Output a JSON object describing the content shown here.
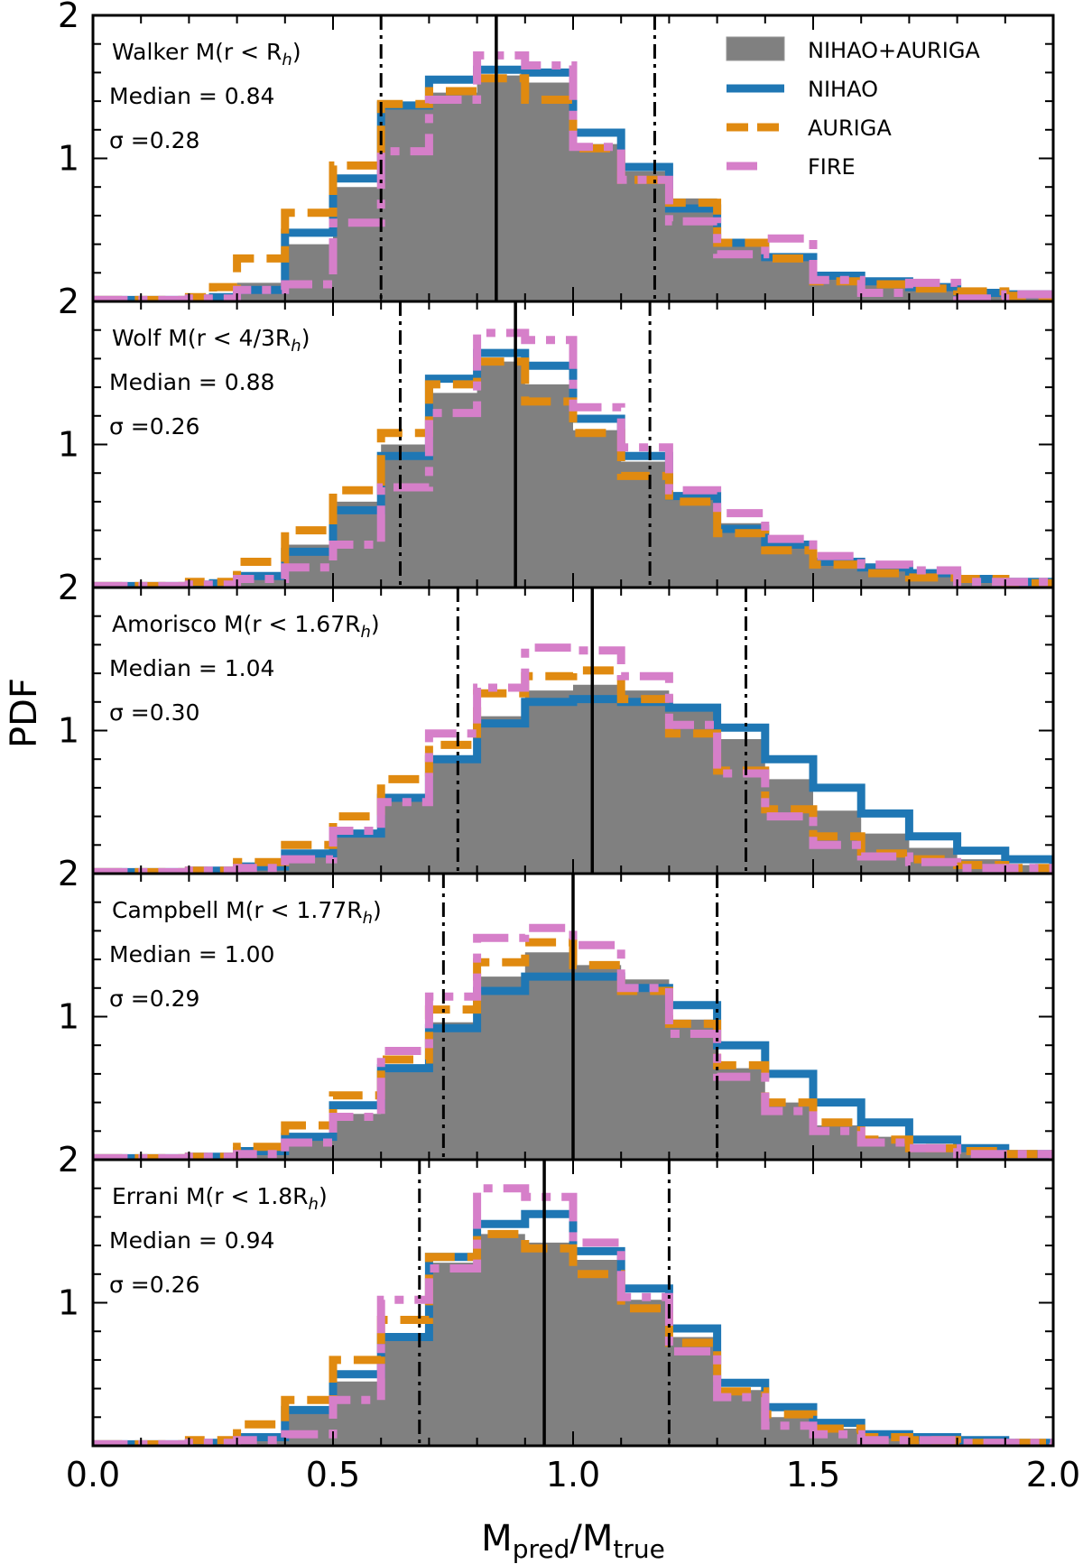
{
  "chart_data": {
    "type": "histogram",
    "xlabel_main": "M",
    "xlabel_sub1": "pred",
    "xlabel_mid": "/M",
    "xlabel_sub2": "true",
    "ylabel": "PDF",
    "xlim": [
      0.0,
      2.0
    ],
    "ylim": [
      0,
      2
    ],
    "x_ticks": [
      "0.0",
      "0.5",
      "1.0",
      "1.5",
      "2.0"
    ],
    "y_tick_labels": [
      "2",
      "1"
    ],
    "bin_edges": [
      0.0,
      0.05,
      0.1,
      0.15,
      0.2,
      0.25,
      0.3,
      0.35,
      0.4,
      0.45,
      0.5,
      0.55,
      0.6,
      0.65,
      0.7,
      0.75,
      0.8,
      0.85,
      0.9,
      0.95,
      1.0,
      1.05,
      1.1,
      1.15,
      1.2,
      1.25,
      1.3,
      1.35,
      1.4,
      1.45,
      1.5,
      1.55,
      1.6,
      1.65,
      1.7,
      1.75,
      1.8,
      1.85,
      1.9,
      1.95,
      2.0
    ],
    "legend": {
      "position": "upper right",
      "entries": [
        {
          "label": "NIHAO+AURIGA",
          "style": "filled-grey"
        },
        {
          "label": "NIHAO",
          "style": "solid-blue"
        },
        {
          "label": "AURIGA",
          "style": "dashed-orange"
        },
        {
          "label": "FIRE",
          "style": "dashdot-pink"
        }
      ]
    },
    "colors": {
      "combined_fill": "#808080",
      "nihao": "#1f77b4",
      "auriga": "#e08a10",
      "fire": "#d67fc9"
    },
    "panels": [
      {
        "estimator_name": "Walker",
        "radius_label": "M(r < R",
        "median_text": "Median = 0.84",
        "sigma_text": "σ =0.28",
        "median": 0.84,
        "p16": 0.6,
        "p84": 1.17,
        "combined": [
          0.01,
          0.01,
          0.01,
          0.01,
          0.02,
          0.03,
          0.13,
          0.13,
          0.4,
          0.4,
          0.8,
          0.8,
          1.38,
          1.38,
          1.46,
          1.46,
          1.58,
          1.58,
          1.53,
          1.53,
          1.1,
          1.1,
          0.91,
          0.91,
          0.72,
          0.72,
          0.43,
          0.43,
          0.32,
          0.32,
          0.2,
          0.2,
          0.16,
          0.16,
          0.11,
          0.11,
          0.07,
          0.07,
          0.04,
          0.04
        ],
        "nihao": [
          0.01,
          0.01,
          0.01,
          0.01,
          0.02,
          0.03,
          0.08,
          0.08,
          0.48,
          0.48,
          0.86,
          0.86,
          1.37,
          1.37,
          1.55,
          1.55,
          1.62,
          1.62,
          1.6,
          1.6,
          1.18,
          1.18,
          0.94,
          0.94,
          0.65,
          0.65,
          0.41,
          0.41,
          0.31,
          0.31,
          0.18,
          0.18,
          0.14,
          0.14,
          0.1,
          0.1,
          0.06,
          0.06,
          0.05,
          0.05
        ],
        "auriga": [
          0.01,
          0.01,
          0.01,
          0.01,
          0.03,
          0.1,
          0.3,
          0.3,
          0.62,
          0.62,
          0.95,
          0.95,
          1.38,
          1.38,
          1.47,
          1.47,
          1.56,
          1.56,
          1.41,
          1.41,
          1.07,
          1.07,
          0.85,
          0.85,
          0.69,
          0.69,
          0.41,
          0.41,
          0.3,
          0.3,
          0.14,
          0.14,
          0.12,
          0.12,
          0.09,
          0.09,
          0.07,
          0.07,
          0.04,
          0.04
        ],
        "fire": [
          0.01,
          0.01,
          0.01,
          0.01,
          0.02,
          0.02,
          0.08,
          0.08,
          0.12,
          0.12,
          0.55,
          0.55,
          1.05,
          1.05,
          1.41,
          1.41,
          1.72,
          1.72,
          1.65,
          1.65,
          1.08,
          1.08,
          0.85,
          0.85,
          0.56,
          0.56,
          0.33,
          0.33,
          0.44,
          0.44,
          0.15,
          0.15,
          0.06,
          0.06,
          0.13,
          0.13,
          0.02,
          0.02,
          0.05,
          0.05
        ]
      },
      {
        "estimator_name": "Wolf",
        "radius_label": "M(r < 4/3R",
        "median_text": "Median = 0.88",
        "sigma_text": "σ =0.26",
        "median": 0.88,
        "p16": 0.64,
        "p84": 1.16,
        "combined": [
          0.01,
          0.01,
          0.01,
          0.01,
          0.02,
          0.03,
          0.1,
          0.1,
          0.3,
          0.3,
          0.6,
          0.6,
          1.0,
          1.0,
          1.36,
          1.36,
          1.58,
          1.58,
          1.42,
          1.42,
          1.1,
          1.1,
          0.88,
          0.88,
          0.66,
          0.66,
          0.45,
          0.45,
          0.28,
          0.28,
          0.2,
          0.2,
          0.14,
          0.14,
          0.1,
          0.1,
          0.06,
          0.06,
          0.04,
          0.04
        ],
        "nihao": [
          0.01,
          0.01,
          0.01,
          0.01,
          0.02,
          0.03,
          0.08,
          0.08,
          0.25,
          0.25,
          0.54,
          0.54,
          0.92,
          0.92,
          1.46,
          1.46,
          1.64,
          1.64,
          1.55,
          1.55,
          1.18,
          1.18,
          0.92,
          0.92,
          0.64,
          0.64,
          0.41,
          0.41,
          0.3,
          0.3,
          0.18,
          0.18,
          0.14,
          0.14,
          0.1,
          0.1,
          0.06,
          0.06,
          0.04,
          0.04
        ],
        "auriga": [
          0.01,
          0.01,
          0.01,
          0.01,
          0.04,
          0.04,
          0.18,
          0.18,
          0.4,
          0.4,
          0.68,
          0.68,
          1.08,
          1.08,
          1.42,
          1.42,
          1.58,
          1.58,
          1.3,
          1.3,
          1.08,
          1.08,
          0.78,
          0.78,
          0.6,
          0.6,
          0.38,
          0.38,
          0.26,
          0.26,
          0.16,
          0.16,
          0.1,
          0.1,
          0.07,
          0.07,
          0.06,
          0.06,
          0.03,
          0.03
        ],
        "fire": [
          0.01,
          0.01,
          0.01,
          0.01,
          0.02,
          0.02,
          0.06,
          0.06,
          0.14,
          0.14,
          0.3,
          0.3,
          0.7,
          0.7,
          1.22,
          1.22,
          1.78,
          1.78,
          1.73,
          1.73,
          1.26,
          1.26,
          0.98,
          0.98,
          0.68,
          0.68,
          0.52,
          0.52,
          0.34,
          0.34,
          0.22,
          0.22,
          0.16,
          0.16,
          0.12,
          0.12,
          0.04,
          0.04,
          0.04,
          0.04
        ]
      },
      {
        "estimator_name": "Amorisco",
        "radius_label": "M(r < 1.67R",
        "median_text": "Median = 1.04",
        "sigma_text": "σ =0.30",
        "median": 1.04,
        "p16": 0.76,
        "p84": 1.36,
        "combined": [
          0.01,
          0.01,
          0.01,
          0.01,
          0.02,
          0.02,
          0.05,
          0.05,
          0.15,
          0.15,
          0.3,
          0.3,
          0.55,
          0.55,
          0.78,
          0.78,
          1.1,
          1.1,
          1.28,
          1.28,
          1.32,
          1.32,
          1.28,
          1.28,
          1.16,
          1.16,
          0.94,
          0.94,
          0.66,
          0.66,
          0.44,
          0.44,
          0.28,
          0.28,
          0.18,
          0.18,
          0.1,
          0.1,
          0.06,
          0.06
        ],
        "nihao": [
          0.01,
          0.01,
          0.01,
          0.01,
          0.02,
          0.02,
          0.05,
          0.05,
          0.14,
          0.14,
          0.28,
          0.28,
          0.53,
          0.53,
          0.8,
          0.8,
          1.05,
          1.05,
          1.2,
          1.2,
          1.22,
          1.22,
          1.2,
          1.2,
          1.16,
          1.16,
          1.02,
          1.02,
          0.8,
          0.8,
          0.6,
          0.6,
          0.42,
          0.42,
          0.26,
          0.26,
          0.16,
          0.16,
          0.1,
          0.1
        ],
        "auriga": [
          0.01,
          0.01,
          0.01,
          0.01,
          0.02,
          0.02,
          0.08,
          0.08,
          0.2,
          0.2,
          0.4,
          0.4,
          0.66,
          0.66,
          0.9,
          0.9,
          1.26,
          1.26,
          1.38,
          1.38,
          1.42,
          1.42,
          1.22,
          1.22,
          0.98,
          0.98,
          0.72,
          0.72,
          0.45,
          0.45,
          0.26,
          0.26,
          0.14,
          0.14,
          0.1,
          0.1,
          0.06,
          0.06,
          0.04,
          0.04
        ],
        "fire": [
          0.01,
          0.01,
          0.01,
          0.01,
          0.02,
          0.02,
          0.04,
          0.04,
          0.1,
          0.1,
          0.3,
          0.3,
          0.5,
          0.5,
          0.98,
          0.98,
          1.3,
          1.3,
          1.58,
          1.58,
          1.56,
          1.56,
          1.38,
          1.38,
          1.04,
          1.04,
          0.7,
          0.7,
          0.4,
          0.4,
          0.2,
          0.2,
          0.12,
          0.12,
          0.08,
          0.08,
          0.04,
          0.04,
          0.04,
          0.04
        ]
      },
      {
        "estimator_name": "Campbell",
        "radius_label": "M(r < 1.77R",
        "median_text": "Median = 1.00",
        "sigma_text": "σ =0.29",
        "median": 1.0,
        "p16": 0.73,
        "p84": 1.3,
        "combined": [
          0.01,
          0.01,
          0.01,
          0.01,
          0.02,
          0.02,
          0.05,
          0.05,
          0.14,
          0.14,
          0.32,
          0.32,
          0.62,
          0.62,
          0.96,
          0.96,
          1.28,
          1.28,
          1.45,
          1.45,
          1.36,
          1.36,
          1.26,
          1.26,
          0.98,
          0.98,
          0.64,
          0.64,
          0.4,
          0.4,
          0.24,
          0.24,
          0.16,
          0.16,
          0.1,
          0.1,
          0.06,
          0.06,
          0.04,
          0.04
        ],
        "nihao": [
          0.01,
          0.01,
          0.01,
          0.01,
          0.02,
          0.02,
          0.06,
          0.06,
          0.16,
          0.16,
          0.38,
          0.38,
          0.64,
          0.64,
          0.92,
          0.92,
          1.18,
          1.18,
          1.28,
          1.28,
          1.28,
          1.28,
          1.2,
          1.2,
          1.08,
          1.08,
          0.8,
          0.8,
          0.6,
          0.6,
          0.4,
          0.4,
          0.26,
          0.26,
          0.14,
          0.14,
          0.08,
          0.08,
          0.04,
          0.04
        ],
        "auriga": [
          0.01,
          0.01,
          0.01,
          0.01,
          0.02,
          0.02,
          0.09,
          0.09,
          0.24,
          0.24,
          0.45,
          0.45,
          0.7,
          0.7,
          1.05,
          1.05,
          1.38,
          1.38,
          1.52,
          1.52,
          1.36,
          1.36,
          1.18,
          1.18,
          0.95,
          0.95,
          0.66,
          0.66,
          0.4,
          0.4,
          0.26,
          0.26,
          0.14,
          0.14,
          0.08,
          0.08,
          0.06,
          0.06,
          0.04,
          0.04
        ],
        "fire": [
          0.01,
          0.01,
          0.01,
          0.01,
          0.02,
          0.02,
          0.04,
          0.04,
          0.12,
          0.12,
          0.3,
          0.3,
          0.76,
          0.76,
          1.14,
          1.14,
          1.55,
          1.55,
          1.62,
          1.62,
          1.5,
          1.5,
          1.2,
          1.2,
          0.88,
          0.88,
          0.58,
          0.58,
          0.34,
          0.34,
          0.2,
          0.2,
          0.12,
          0.12,
          0.08,
          0.08,
          0.04,
          0.04,
          0.04,
          0.04
        ]
      },
      {
        "estimator_name": "Errani",
        "radius_label": "M(r < 1.8R",
        "median_text": "Median = 0.94",
        "sigma_text": "σ =0.26",
        "median": 0.94,
        "p16": 0.68,
        "p84": 1.2,
        "combined": [
          0.01,
          0.01,
          0.01,
          0.01,
          0.02,
          0.02,
          0.06,
          0.06,
          0.23,
          0.23,
          0.45,
          0.45,
          0.78,
          0.78,
          1.28,
          1.28,
          1.48,
          1.48,
          1.42,
          1.42,
          1.3,
          1.3,
          1.02,
          1.02,
          0.76,
          0.76,
          0.39,
          0.39,
          0.2,
          0.2,
          0.12,
          0.12,
          0.07,
          0.07,
          0.05,
          0.05,
          0.03,
          0.03,
          0.02,
          0.02
        ],
        "nihao": [
          0.01,
          0.01,
          0.01,
          0.01,
          0.02,
          0.02,
          0.06,
          0.06,
          0.25,
          0.25,
          0.5,
          0.5,
          0.76,
          0.76,
          1.32,
          1.32,
          1.55,
          1.55,
          1.62,
          1.62,
          1.36,
          1.36,
          1.1,
          1.1,
          0.82,
          0.82,
          0.44,
          0.44,
          0.27,
          0.27,
          0.16,
          0.16,
          0.08,
          0.08,
          0.06,
          0.06,
          0.04,
          0.04,
          0.02,
          0.02
        ],
        "auriga": [
          0.01,
          0.01,
          0.01,
          0.01,
          0.04,
          0.04,
          0.15,
          0.15,
          0.32,
          0.32,
          0.6,
          0.6,
          0.88,
          0.88,
          1.32,
          1.32,
          1.48,
          1.48,
          1.38,
          1.38,
          1.2,
          1.2,
          0.96,
          0.96,
          0.72,
          0.72,
          0.38,
          0.38,
          0.22,
          0.22,
          0.12,
          0.12,
          0.06,
          0.06,
          0.04,
          0.04,
          0.02,
          0.02,
          0.02,
          0.02
        ],
        "fire": [
          0.01,
          0.01,
          0.01,
          0.01,
          0.02,
          0.02,
          0.04,
          0.04,
          0.08,
          0.08,
          0.32,
          0.32,
          1.02,
          1.02,
          1.24,
          1.24,
          1.8,
          1.8,
          1.74,
          1.74,
          1.42,
          1.42,
          1.04,
          1.04,
          0.66,
          0.66,
          0.34,
          0.34,
          0.14,
          0.14,
          0.08,
          0.08,
          0.04,
          0.04,
          0.04,
          0.04,
          0.02,
          0.02,
          0.02,
          0.02
        ]
      }
    ]
  }
}
